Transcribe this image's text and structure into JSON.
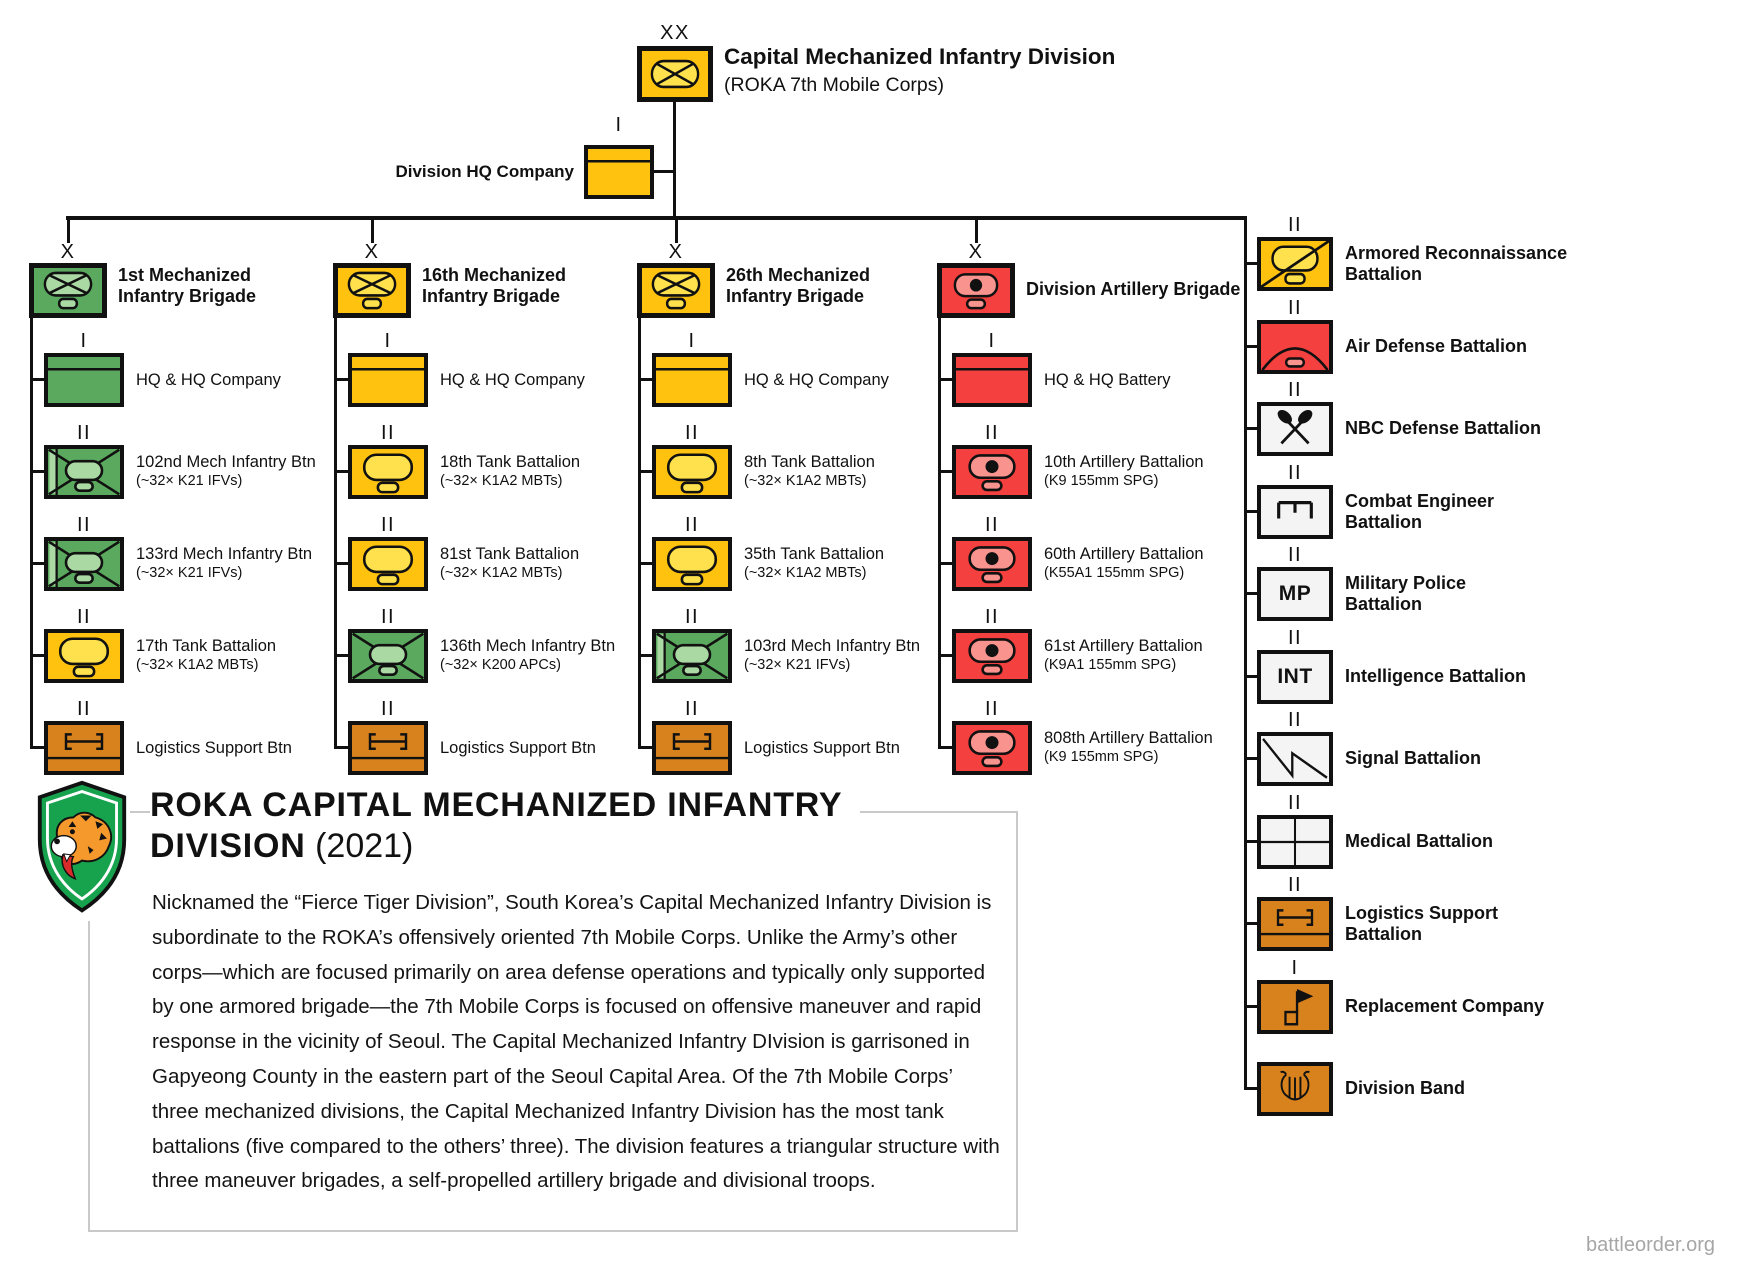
{
  "header": {
    "division_echelon": "XX",
    "division_name": "Capital Mechanized Infantry Division",
    "division_subtitle": "(ROKA 7th Mobile Corps)",
    "hq_company": {
      "echelon": "I",
      "label": "Division HQ Company"
    }
  },
  "brigades": [
    {
      "echelon": "X",
      "name_lines": [
        "1st Mechanized",
        "Infantry Brigade"
      ],
      "color": "green",
      "symbol": "mech-bde",
      "units": [
        {
          "echelon": "I",
          "label": "HQ & HQ Company",
          "detail": "",
          "color": "green",
          "symbol": "hq"
        },
        {
          "echelon": "II",
          "label": "102nd Mech Infantry Btn",
          "detail": "(~32× K21 IFVs)",
          "color": "green",
          "symbol": "mech-ifv"
        },
        {
          "echelon": "II",
          "label": "133rd Mech Infantry Btn",
          "detail": "(~32× K21 IFVs)",
          "color": "green",
          "symbol": "mech-ifv"
        },
        {
          "echelon": "II",
          "label": "17th Tank Battalion",
          "detail": "(~32× K1A2 MBTs)",
          "color": "yellow",
          "symbol": "tank"
        },
        {
          "echelon": "II",
          "label": "Logistics Support Btn",
          "detail": "",
          "color": "orange",
          "symbol": "logistics"
        }
      ]
    },
    {
      "echelon": "X",
      "name_lines": [
        "16th Mechanized",
        "Infantry Brigade"
      ],
      "color": "yellow",
      "symbol": "mech-bde",
      "units": [
        {
          "echelon": "I",
          "label": "HQ & HQ Company",
          "detail": "",
          "color": "yellow",
          "symbol": "hq"
        },
        {
          "echelon": "II",
          "label": "18th Tank Battalion",
          "detail": "(~32× K1A2 MBTs)",
          "color": "yellow",
          "symbol": "tank"
        },
        {
          "echelon": "II",
          "label": "81st Tank Battalion",
          "detail": "(~32× K1A2 MBTs)",
          "color": "yellow",
          "symbol": "tank"
        },
        {
          "echelon": "II",
          "label": "136th Mech Infantry Btn",
          "detail": "(~32× K200 APCs)",
          "color": "green",
          "symbol": "mech-apc"
        },
        {
          "echelon": "II",
          "label": "Logistics Support Btn",
          "detail": "",
          "color": "orange",
          "symbol": "logistics"
        }
      ]
    },
    {
      "echelon": "X",
      "name_lines": [
        "26th Mechanized",
        "Infantry Brigade"
      ],
      "color": "yellow",
      "symbol": "mech-bde",
      "units": [
        {
          "echelon": "I",
          "label": "HQ & HQ Company",
          "detail": "",
          "color": "yellow",
          "symbol": "hq"
        },
        {
          "echelon": "II",
          "label": "8th Tank Battalion",
          "detail": "(~32× K1A2 MBTs)",
          "color": "yellow",
          "symbol": "tank"
        },
        {
          "echelon": "II",
          "label": "35th Tank Battalion",
          "detail": "(~32× K1A2 MBTs)",
          "color": "yellow",
          "symbol": "tank"
        },
        {
          "echelon": "II",
          "label": "103rd Mech Infantry Btn",
          "detail": "(~32× K21 IFVs)",
          "color": "green",
          "symbol": "mech-ifv"
        },
        {
          "echelon": "II",
          "label": "Logistics Support Btn",
          "detail": "",
          "color": "orange",
          "symbol": "logistics"
        }
      ]
    },
    {
      "echelon": "X",
      "name_lines": [
        "Division Artillery Brigade"
      ],
      "color": "red",
      "symbol": "arty",
      "units": [
        {
          "echelon": "I",
          "label": "HQ & HQ Battery",
          "detail": "",
          "color": "red",
          "symbol": "hq"
        },
        {
          "echelon": "II",
          "label": "10th Artillery Battalion",
          "detail": "(K9 155mm SPG)",
          "color": "red",
          "symbol": "arty"
        },
        {
          "echelon": "II",
          "label": "60th Artillery Battalion",
          "detail": "(K55A1 155mm SPG)",
          "color": "red",
          "symbol": "arty"
        },
        {
          "echelon": "II",
          "label": "61st Artillery Battalion",
          "detail": "(K9A1 155mm SPG)",
          "color": "red",
          "symbol": "arty"
        },
        {
          "echelon": "II",
          "label": "808th Artillery Battalion",
          "detail": "(K9 155mm SPG)",
          "color": "red",
          "symbol": "arty"
        }
      ]
    }
  ],
  "division_troops": [
    {
      "echelon": "II",
      "label_lines": [
        "Armored Reconnaissance",
        "Battalion"
      ],
      "color": "yellow",
      "symbol": "recon"
    },
    {
      "echelon": "II",
      "label_lines": [
        "Air Defense Battalion"
      ],
      "color": "red",
      "symbol": "airdef"
    },
    {
      "echelon": "II",
      "label_lines": [
        "NBC Defense Battalion"
      ],
      "color": "white",
      "symbol": "nbc"
    },
    {
      "echelon": "II",
      "label_lines": [
        "Combat Engineer",
        "Battalion"
      ],
      "color": "white",
      "symbol": "engineer"
    },
    {
      "echelon": "II",
      "label_lines": [
        "Military Police",
        "Battalion"
      ],
      "color": "white",
      "symbol": "mp",
      "glyph": "MP"
    },
    {
      "echelon": "II",
      "label_lines": [
        "Intelligence Battalion"
      ],
      "color": "white",
      "symbol": "int",
      "glyph": "INT"
    },
    {
      "echelon": "II",
      "label_lines": [
        "Signal Battalion"
      ],
      "color": "white",
      "symbol": "signal"
    },
    {
      "echelon": "II",
      "label_lines": [
        "Medical Battalion"
      ],
      "color": "white",
      "symbol": "medical"
    },
    {
      "echelon": "II",
      "label_lines": [
        "Logistics Support",
        "Battalion"
      ],
      "color": "orange",
      "symbol": "logistics"
    },
    {
      "echelon": "I",
      "label_lines": [
        "Replacement Company"
      ],
      "color": "orange",
      "symbol": "replacement"
    },
    {
      "echelon": "",
      "label_lines": [
        "Division Band"
      ],
      "color": "orange",
      "symbol": "band"
    }
  ],
  "about": {
    "title_line1": "ROKA CAPITAL MECHANIZED INFANTRY",
    "title_line2_bold": "DIVISION",
    "title_line2_tail": " (2021)",
    "body": "Nicknamed the “Fierce Tiger Division”, South Korea’s Capital Mechanized Infantry Division is subordinate to the ROKA’s offensively oriented 7th Mobile Corps. Unlike the Army’s other corps—which are focused primarily on area defense operations and typically only supported by one armored brigade—the 7th Mobile Corps is focused on offensive maneuver and rapid response in the vicinity of Seoul. The Capital Mechanized Infantry DIvision is garrisoned in Gapyeong County in the eastern part of the Seoul Capital Area. Of the 7th Mobile Corps’ three mechanized divisions, the Capital Mechanized Infantry Division has the most tank battalions (five compared to the others’ three). The division features a triangular structure with three maneuver brigades, a self-propelled artillery brigade and divisional troops."
  },
  "watermark": "battleorder.org",
  "colors": {
    "yellow": "#FFC20E",
    "yellow_light": "#FFE14D",
    "green": "#5BA95F",
    "green_light": "#ABD9A4",
    "red": "#F4403E",
    "red_light": "#F9938E",
    "orange": "#D8821E",
    "orange_light": "#D8821E",
    "white": "#F4F4F4",
    "white_light": "#F4F4F4",
    "line": "#111111",
    "frame": "#C9C9C9",
    "watermark": "#A6A6A6"
  }
}
